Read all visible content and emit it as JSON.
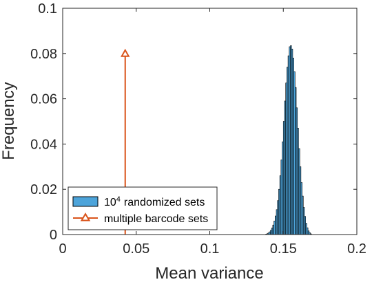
{
  "chart_data": {
    "type": "bar",
    "title": "",
    "xlabel": "Mean variance",
    "ylabel": "Frequency",
    "xlim": [
      0,
      0.2
    ],
    "ylim": [
      0,
      0.1
    ],
    "x_ticks": [
      "0",
      "0.05",
      "0.1",
      "0.15",
      "0.2"
    ],
    "y_ticks": [
      "0",
      "0.02",
      "0.04",
      "0.06",
      "0.08",
      "0.1"
    ],
    "grid": false,
    "legend_position": "bottom-left",
    "series": [
      {
        "name": "randomized sets",
        "name_base": "10",
        "name_exponent": "4",
        "kind": "histogram",
        "color": "#4da4da",
        "edge_color": "#000000",
        "bin_width": 0.0008,
        "x": [
          0.1384,
          0.1392,
          0.14,
          0.1408,
          0.1416,
          0.1424,
          0.1432,
          0.144,
          0.1448,
          0.1456,
          0.1464,
          0.1472,
          0.148,
          0.1488,
          0.1496,
          0.1504,
          0.1512,
          0.152,
          0.1528,
          0.1536,
          0.1544,
          0.1552,
          0.156,
          0.1568,
          0.1576,
          0.1584,
          0.1592,
          0.16,
          0.1608,
          0.1616,
          0.1624,
          0.1632,
          0.164,
          0.1648,
          0.1656,
          0.1664,
          0.1672,
          0.168,
          0.1688
        ],
        "values": [
          0.0002,
          0.0004,
          0.0007,
          0.0012,
          0.0019,
          0.0029,
          0.0042,
          0.006,
          0.0082,
          0.011,
          0.015,
          0.02,
          0.026,
          0.033,
          0.041,
          0.05,
          0.059,
          0.067,
          0.074,
          0.079,
          0.083,
          0.0835,
          0.082,
          0.078,
          0.072,
          0.065,
          0.056,
          0.047,
          0.038,
          0.03,
          0.023,
          0.017,
          0.012,
          0.008,
          0.005,
          0.003,
          0.0016,
          0.0008,
          0.0003
        ]
      },
      {
        "name": "multiple barcode sets",
        "kind": "stem",
        "color": "#d95319",
        "marker": "triangle",
        "x": [
          0.0425
        ],
        "values": [
          0.08
        ]
      }
    ]
  }
}
